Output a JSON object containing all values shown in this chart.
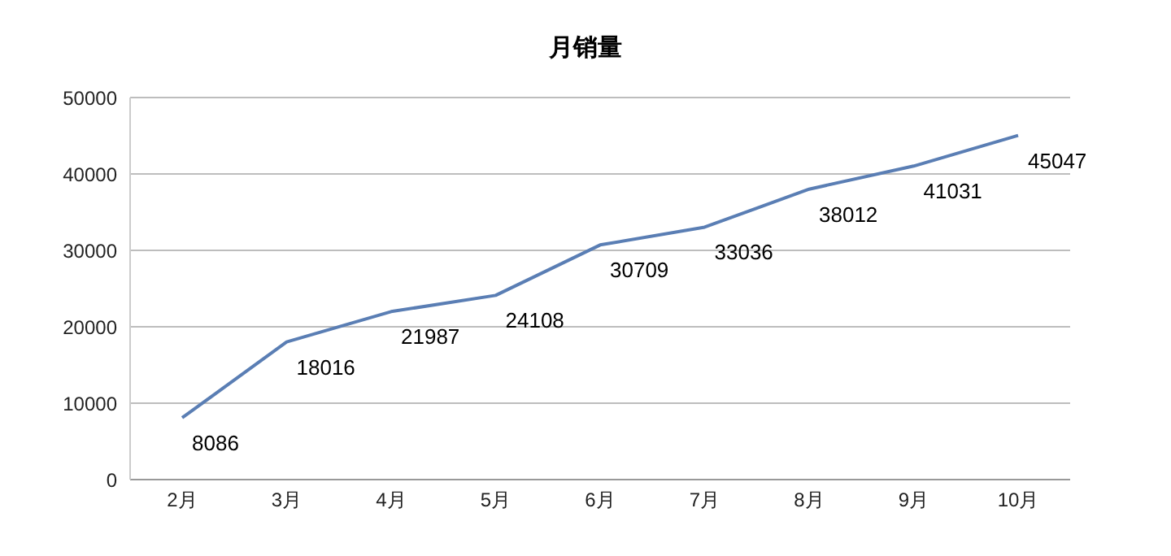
{
  "chart_data": {
    "type": "line",
    "title": "月销量",
    "categories": [
      "2月",
      "3月",
      "4月",
      "5月",
      "6月",
      "7月",
      "8月",
      "9月",
      "10月"
    ],
    "series": [
      {
        "color": "#5a7eb4",
        "values": [
          8086,
          18016,
          21987,
          24108,
          30709,
          33036,
          38012,
          41031,
          45047
        ]
      }
    ],
    "ylim": [
      0,
      50000
    ],
    "yticks": [
      0,
      10000,
      20000,
      30000,
      40000,
      50000
    ],
    "grid": "y",
    "data_labels": true,
    "marker": "none"
  }
}
